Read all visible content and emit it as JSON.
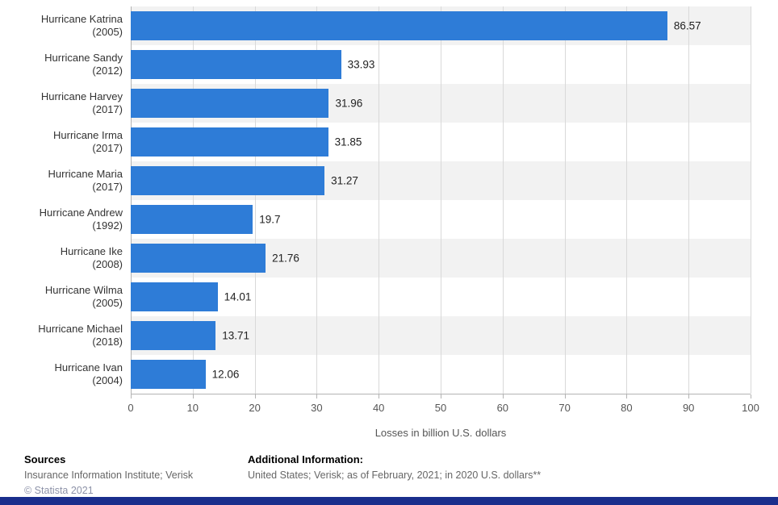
{
  "chart_data": {
    "type": "bar",
    "orientation": "horizontal",
    "categories": [
      {
        "name": "Hurricane Katrina",
        "year": "(2005)"
      },
      {
        "name": "Hurricane Sandy",
        "year": "(2012)"
      },
      {
        "name": "Hurricane Harvey",
        "year": "(2017)"
      },
      {
        "name": "Hurricane Irma",
        "year": "(2017)"
      },
      {
        "name": "Hurricane Maria",
        "year": "(2017)"
      },
      {
        "name": "Hurricane Andrew",
        "year": "(1992)"
      },
      {
        "name": "Hurricane Ike",
        "year": "(2008)"
      },
      {
        "name": "Hurricane Wilma",
        "year": "(2005)"
      },
      {
        "name": "Hurricane Michael",
        "year": "(2018)"
      },
      {
        "name": "Hurricane Ivan",
        "year": "(2004)"
      }
    ],
    "values": [
      86.57,
      33.93,
      31.96,
      31.85,
      31.27,
      19.7,
      21.76,
      14.01,
      13.71,
      12.06
    ],
    "value_labels": [
      "86.57",
      "33.93",
      "31.96",
      "31.85",
      "31.27",
      "19.7",
      "21.76",
      "14.01",
      "13.71",
      "12.06"
    ],
    "xlabel": "Losses in billion U.S. dollars",
    "xlim": [
      0,
      100
    ],
    "xticks": [
      "0",
      "10",
      "20",
      "30",
      "40",
      "50",
      "60",
      "70",
      "80",
      "90",
      "100"
    ],
    "grid": true,
    "legend": false,
    "bar_color": "#2e7cd7",
    "stripe_color": "#f2f2f2",
    "grid_color": "#d9d9d9",
    "axis_color": "#b3b3b3"
  },
  "footer": {
    "sources_title": "Sources",
    "sources_text": "Insurance Information Institute; Verisk",
    "copyright": "© Statista 2021",
    "additional_title": "Additional Information:",
    "additional_text": "United States; Verisk; as of February, 2021; in 2020 U.S. dollars**"
  },
  "brand": {
    "bottom_bar_color": "#1a2e8c"
  }
}
